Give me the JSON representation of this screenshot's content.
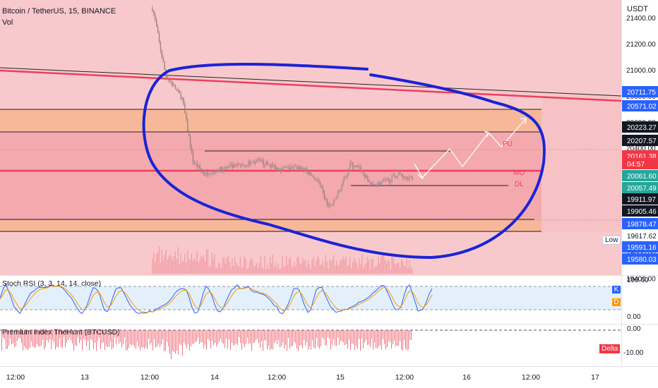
{
  "header": {
    "symbol_title": "Bitcoin / TetherUS, 15, BINANCE",
    "volume_label": "Vol"
  },
  "price_axis": {
    "currency": "USDT",
    "ticks": [
      "21400.00",
      "21200.00",
      "21000.00",
      "20800.00",
      "20600.00",
      "20400.00",
      "20200.00",
      "20000.00",
      "19800.00",
      "19600.00",
      "19400.00"
    ]
  },
  "price_tags": [
    {
      "text": "20711.75",
      "bg": "#2962ff",
      "fg": "#ffffff"
    },
    {
      "text": "20571.02",
      "bg": "#2962ff",
      "fg": "#ffffff"
    },
    {
      "text": "20223.27",
      "bg": "#131722",
      "fg": "#ffffff"
    },
    {
      "text": "20207.57",
      "bg": "#131722",
      "fg": "#ffffff"
    },
    {
      "text": "20161.38",
      "bg": "#f23645",
      "fg": "#ffffff"
    },
    {
      "text": "04:57",
      "bg": "#f23645",
      "fg": "#ffffff"
    },
    {
      "text": "20061.60",
      "bg": "#26a69a",
      "fg": "#ffffff"
    },
    {
      "text": "20057.49",
      "bg": "#26a69a",
      "fg": "#ffffff"
    },
    {
      "text": "19911.97",
      "bg": "#131722",
      "fg": "#ffffff"
    },
    {
      "text": "19905.46",
      "bg": "#131722",
      "fg": "#ffffff"
    },
    {
      "text": "19878.47",
      "bg": "#2962ff",
      "fg": "#ffffff"
    },
    {
      "text": "19617.62",
      "bg": "#ffffff",
      "fg": "#131722"
    },
    {
      "text": "19591.16",
      "bg": "#2962ff",
      "fg": "#ffffff"
    },
    {
      "text": "19580.03",
      "bg": "#2962ff",
      "fg": "#ffffff"
    }
  ],
  "low_badge": "Low",
  "level_labels": {
    "pu": "PU",
    "mo": "MO",
    "dl": "DL"
  },
  "stoch_rsi": {
    "title": "Stoch RSI (3, 3, 14, 14, close)",
    "ticks": [
      "100.00",
      "0.00"
    ],
    "k_badge": "K",
    "d_badge": "D"
  },
  "premium_index": {
    "title": "Premium Index TheHunt (BTCUSD)",
    "ticks": [
      "0.00",
      "-10.00"
    ],
    "delta_badge": "Delta"
  },
  "time_axis": {
    "ticks": [
      "12:00",
      "13",
      "12:00",
      "14",
      "12:00",
      "15",
      "12:00",
      "16",
      "12:00",
      "17"
    ]
  },
  "colors": {
    "bg_red": "#f8c9cc",
    "zone_red": "#f4a9ae",
    "zone_orange": "#f7b89a",
    "trend_red": "#ee3e5f",
    "annotation_blue": "#1a23d6",
    "candle_up": "#9c8f90",
    "candle_down": "#a07f82"
  },
  "chart_data": {
    "type": "candlestick",
    "symbol": "Bitcoin / TetherUS",
    "interval": "15",
    "exchange": "BINANCE",
    "y_unit": "USDT",
    "ylim": [
      19400,
      21500
    ],
    "x_ticks": [
      "12:00",
      "13",
      "12:00",
      "14",
      "12:00",
      "15",
      "12:00",
      "16",
      "12:00",
      "17"
    ],
    "close_path": [
      {
        "t": "Sep 13 12:30",
        "price": 21470
      },
      {
        "t": "Sep 13 13:00",
        "price": 21380
      },
      {
        "t": "Sep 13 14:00",
        "price": 21150
      },
      {
        "t": "Sep 13 15:00",
        "price": 20950
      },
      {
        "t": "Sep 13 16:00",
        "price": 20900
      },
      {
        "t": "Sep 13 18:00",
        "price": 20780
      },
      {
        "t": "Sep 13 20:00",
        "price": 20300
      },
      {
        "t": "Sep 13 22:00",
        "price": 20200
      },
      {
        "t": "Sep 14 00:00",
        "price": 20230
      },
      {
        "t": "Sep 14 04:00",
        "price": 20260
      },
      {
        "t": "Sep 14 08:00",
        "price": 20300
      },
      {
        "t": "Sep 14 12:00",
        "price": 20240
      },
      {
        "t": "Sep 14 16:00",
        "price": 20250
      },
      {
        "t": "Sep 14 19:00",
        "price": 20150
      },
      {
        "t": "Sep 14 21:00",
        "price": 19950
      },
      {
        "t": "Sep 14 22:00",
        "price": 19980
      },
      {
        "t": "Sep 15 00:00",
        "price": 20160
      },
      {
        "t": "Sep 15 01:00",
        "price": 20280
      },
      {
        "t": "Sep 15 03:00",
        "price": 20230
      },
      {
        "t": "Sep 15 05:00",
        "price": 20110
      },
      {
        "t": "Sep 15 08:00",
        "price": 20150
      },
      {
        "t": "Sep 15 10:00",
        "price": 20200
      },
      {
        "t": "Sep 15 12:30",
        "price": 20161.38
      }
    ],
    "horizontal_levels": [
      20711.75,
      20571.02,
      20223.27,
      20207.57,
      20061.6,
      20057.49,
      19911.97,
      19905.46,
      19878.47
    ],
    "projected_path": [
      {
        "t": "Sep 15 13:00",
        "price": 20170
      },
      {
        "t": "Sep 15 15:00",
        "price": 20050
      },
      {
        "t": "Sep 15 19:00",
        "price": 20220
      },
      {
        "t": "Sep 15 21:00",
        "price": 20110
      },
      {
        "t": "Sep 16 01:00",
        "price": 20330
      },
      {
        "t": "Sep 16 03:00",
        "price": 20190
      },
      {
        "t": "Sep 16 07:00",
        "price": 20410
      },
      {
        "t": "Sep 16 09:00",
        "price": 20220
      },
      {
        "t": "Sep 16 13:00",
        "price": 20520
      }
    ],
    "low_value": 19617.62,
    "last_price": 20161.38,
    "countdown": "04:57",
    "indicators": [
      {
        "name": "Stoch RSI (3, 3, 14, 14, close)",
        "ylim": [
          0,
          100
        ]
      },
      {
        "name": "Premium Index TheHunt (BTCUSD)",
        "ylim": [
          -14,
          1
        ]
      }
    ]
  }
}
